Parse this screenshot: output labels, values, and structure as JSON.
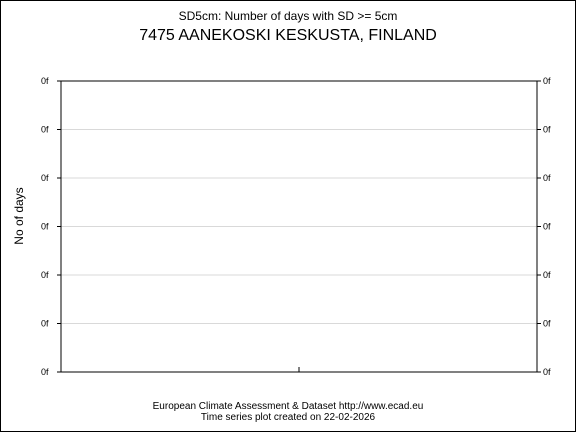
{
  "header": {
    "title": "SD5cm: Number of days with SD >= 5cm",
    "subtitle": "7475 AANEKOSKI KESKUSTA, FINLAND"
  },
  "footer": {
    "line1": "European Climate Assessment & Dataset  http://www.ecad.eu",
    "line2": "Time series plot created on 22-02-2026"
  },
  "chart_data": {
    "type": "line",
    "title": "SD5cm: Number of days with SD >= 5cm",
    "subtitle": "7475 AANEKOSKI KESKUSTA, FINLAND",
    "ylabel": "No of days",
    "xlabel": "",
    "y_tick_labels": [
      "0f",
      "0f",
      "0f",
      "0f",
      "0f",
      "0f",
      "0f"
    ],
    "x_ticks": 1,
    "series": [],
    "grid": true,
    "colors": {
      "grid": "#d9d9d9",
      "axis": "#000000"
    }
  }
}
